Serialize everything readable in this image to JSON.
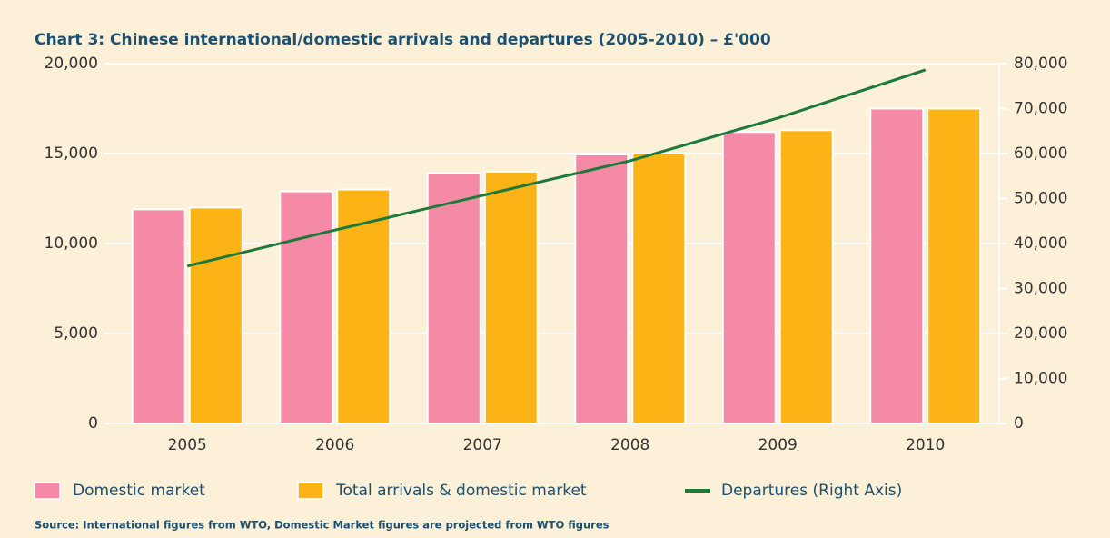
{
  "chart_data": {
    "type": "bar",
    "title": "Chart 3: Chinese international/domestic arrivals and departures (2005-2010) – £'000",
    "source": "Source: International figures from WTO, Domestic Market figures are projected from WTO figures",
    "categories": [
      "2005",
      "2006",
      "2007",
      "2008",
      "2009",
      "2010"
    ],
    "series": [
      {
        "name": "Domestic market",
        "color": "#f48aa6",
        "type": "bar",
        "values": [
          11900,
          12900,
          13900,
          14950,
          16200,
          17500
        ]
      },
      {
        "name": "Total arrivals & domestic market",
        "color": "#fbb316",
        "type": "bar",
        "values": [
          12000,
          13000,
          14000,
          15000,
          16300,
          17500
        ]
      },
      {
        "name": "Departures (Right Axis)",
        "color": "#1b7a3a",
        "type": "line",
        "axis": "y2",
        "values": [
          35000,
          43000,
          50700,
          58400,
          67900,
          78600
        ]
      }
    ],
    "ylim": [
      0,
      20000
    ],
    "yticks": [
      0,
      {
        "value": 5000,
        "label": "5,000"
      },
      {
        "value": 10000,
        "label": "10,000"
      },
      {
        "value": 15000,
        "label": "15,000"
      },
      {
        "value": 20000,
        "label": "20,000"
      }
    ],
    "y2lim": [
      0,
      80000
    ],
    "y2ticks": [
      0,
      {
        "value": 10000,
        "label": "10,000"
      },
      {
        "value": 20000,
        "label": "20,000"
      },
      {
        "value": 30000,
        "label": "30,000"
      },
      {
        "value": 40000,
        "label": "40,000"
      },
      {
        "value": 50000,
        "label": "50,000"
      },
      {
        "value": 60000,
        "label": "60,000"
      },
      {
        "value": 70000,
        "label": "70,000"
      },
      {
        "value": 80000,
        "label": "80,000"
      }
    ],
    "grid": true,
    "legend": "bottom"
  }
}
